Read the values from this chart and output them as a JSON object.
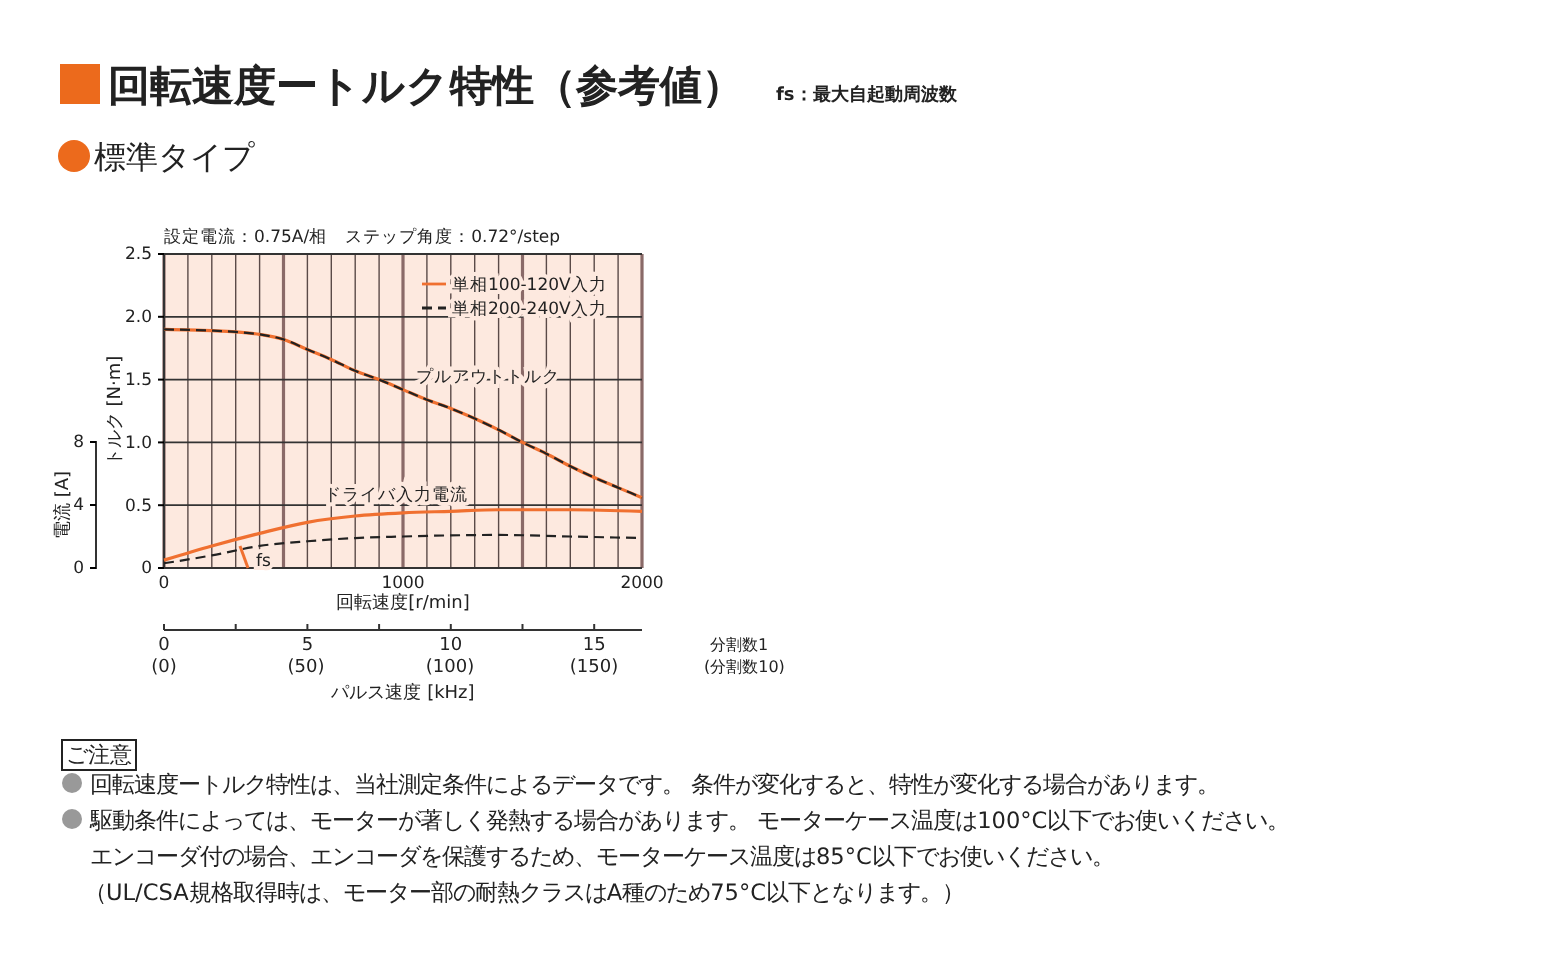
{
  "chart_data": {
    "type": "line",
    "title": "回転速度ートルク特性（参考値）",
    "subtitle": "標準タイプ",
    "xlabel": "回転速度[r/min]",
    "ylabel": "トルク [N·m]",
    "y2label": "電流 [A]",
    "x2label": "パルス速度 [kHz]",
    "x": [
      0,
      200,
      300,
      400,
      500,
      600,
      700,
      800,
      900,
      1000,
      1100,
      1200,
      1300,
      1400,
      1500,
      1600,
      1700,
      1800,
      1900,
      2000
    ],
    "series": [
      {
        "name": "単相100-120V入力",
        "color": "#f07030",
        "line_style": "solid",
        "values": [
          1.9,
          1.89,
          1.88,
          1.86,
          1.82,
          1.74,
          1.66,
          1.57,
          1.5,
          1.42,
          1.34,
          1.27,
          1.19,
          1.1,
          1.0,
          0.91,
          0.81,
          0.72,
          0.64,
          0.56
        ]
      },
      {
        "name": "単相200-240V入力",
        "color": "#222222",
        "line_style": "dashed",
        "values": [
          1.9,
          1.89,
          1.88,
          1.86,
          1.82,
          1.74,
          1.66,
          1.57,
          1.5,
          1.42,
          1.34,
          1.27,
          1.19,
          1.1,
          1.0,
          0.91,
          0.81,
          0.72,
          0.64,
          0.56
        ]
      },
      {
        "color": "#f07030",
        "line_style": "solid",
        "axis": "y2",
        "x": [
          0,
          200,
          400,
          600,
          800,
          1000,
          1200,
          1400,
          1700,
          2000
        ],
        "values": [
          0.5,
          1.4,
          2.2,
          2.9,
          3.3,
          3.5,
          3.6,
          3.7,
          3.7,
          3.6
        ]
      },
      {
        "color": "#222222",
        "line_style": "dashed",
        "axis": "y2",
        "x": [
          0,
          200,
          400,
          600,
          800,
          1000,
          1400,
          1700,
          2000
        ],
        "values": [
          0.3,
          0.8,
          1.4,
          1.7,
          1.9,
          2.0,
          2.1,
          2.0,
          1.9
        ]
      }
    ],
    "xlim": [
      0,
      2000
    ],
    "xticks": [
      0,
      {
        "value": 100,
        "label": null
      },
      {
        "value": 200,
        "label": null
      },
      {
        "value": 300,
        "label": null
      },
      {
        "value": 400,
        "label": null
      },
      {
        "value": 500,
        "label": null
      },
      {
        "value": 600,
        "label": null
      },
      {
        "value": 700,
        "label": null
      },
      {
        "value": 800,
        "label": null
      },
      {
        "value": 900,
        "label": null
      },
      1000,
      {
        "value": 1100,
        "label": null
      },
      {
        "value": 1200,
        "label": null
      },
      {
        "value": 1300,
        "label": null
      },
      {
        "value": 1400,
        "label": null
      },
      {
        "value": 1500,
        "label": null
      },
      {
        "value": 1600,
        "label": null
      },
      {
        "value": 1700,
        "label": null
      },
      {
        "value": 1800,
        "label": null
      },
      {
        "value": 1900,
        "label": null
      },
      2000
    ],
    "ylim": [
      0,
      2.5
    ],
    "yticks": [
      0,
      {
        "value": 0.5,
        "label": "0.5"
      },
      {
        "value": 1,
        "label": "1.0"
      },
      {
        "value": 1.5,
        "label": "1.5"
      },
      {
        "value": 2,
        "label": "2.0"
      },
      {
        "value": 2.5,
        "label": "2.5"
      }
    ],
    "y2lim": [
      0,
      8
    ],
    "y2ticks": [
      0,
      4,
      8
    ],
    "x2lim": [
      0,
      16.667
    ],
    "x2ticks": [
      0,
      {
        "value": 2.5,
        "label": null
      },
      5,
      {
        "value": 7.5,
        "label": null
      },
      10,
      {
        "value": 12.5,
        "label": null
      },
      15
    ],
    "grid": true,
    "legend": "top right",
    "marker": "none",
    "annotations": [
      "fs：最大自起動周波数",
      "設定電流：0.75A/相　ステップ角度：0.72°/step",
      "分割数1",
      "(分割数10)",
      "ご注意",
      "回転速度ートルク特性は、当社測定条件によるデータです。 条件が変化すると、特性が変化する場合があります。",
      "駆動条件によっては、モーターが著しく発熱する場合があります。 モーターケース温度は100°C以下でお使いください。",
      "エンコーダ付の場合、エンコーダを保護するため、モーターケース温度は85°C以下でお使いください。",
      "（UL/CSA規格取得時は、モーター部の耐熱クラスはA種のため75°C以下となります。）",
      "プルアウトトルク",
      "ドライバ入力電流",
      "fs",
      "(0)",
      "(50)",
      "(100)",
      "(150)"
    ]
  }
}
